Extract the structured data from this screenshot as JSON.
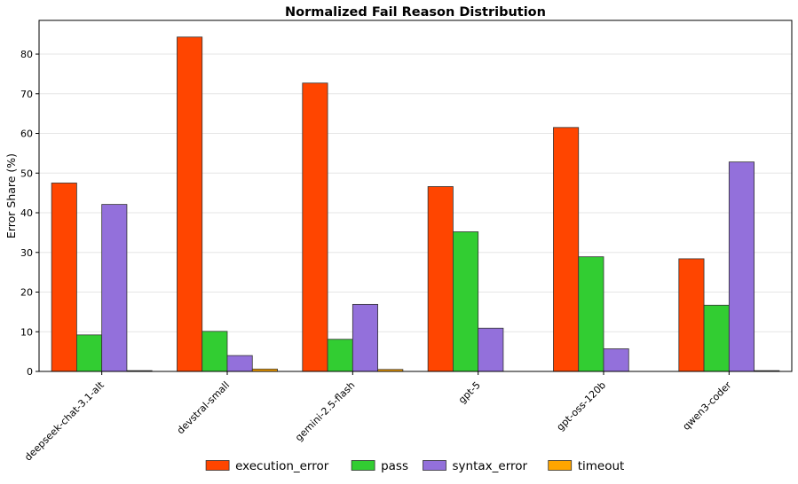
{
  "chart_data": {
    "type": "bar",
    "title": "Normalized Fail Reason Distribution",
    "xlabel": "",
    "ylabel": "Error Share (%)",
    "ylim": [
      0,
      88.5
    ],
    "yticks": [
      0,
      10,
      20,
      30,
      40,
      50,
      60,
      70,
      80
    ],
    "grid": "horizontal",
    "legend_position": "bottom-center",
    "categories": [
      "deepseek-chat-3.1-alt",
      "devstral-small",
      "gemini-2.5-flash",
      "gpt-5",
      "gpt-oss-120b",
      "qwen3-coder"
    ],
    "series": [
      {
        "name": "execution_error",
        "color": "#ff4500",
        "values": [
          47.5,
          84.3,
          72.7,
          46.6,
          61.5,
          28.4
        ]
      },
      {
        "name": "pass",
        "color": "#32cd32",
        "values": [
          9.2,
          10.1,
          8.1,
          35.2,
          28.9,
          16.7
        ]
      },
      {
        "name": "syntax_error",
        "color": "#9370db",
        "values": [
          42.1,
          4.0,
          16.9,
          10.9,
          5.7,
          52.8
        ]
      },
      {
        "name": "timeout",
        "color": "#ffa500",
        "values": [
          0.2,
          0.6,
          0.5,
          0.0,
          0.0,
          0.2
        ]
      }
    ]
  }
}
